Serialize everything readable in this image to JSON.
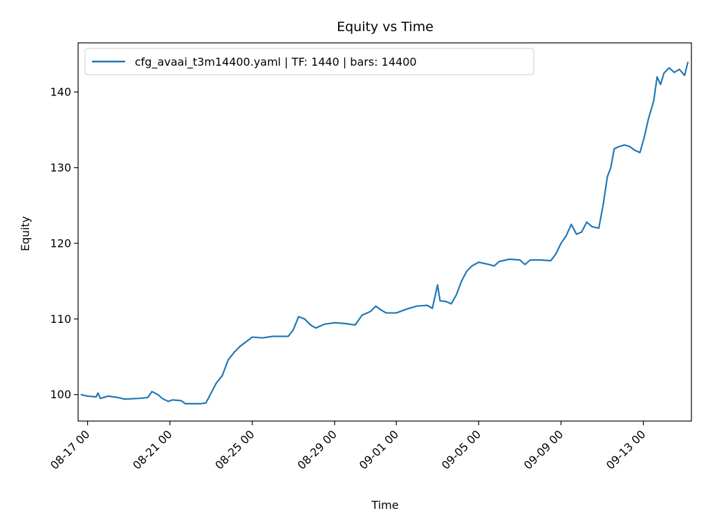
{
  "chart_data": {
    "type": "line",
    "title": "Equity vs Time",
    "xlabel": "Time",
    "ylabel": "Equity",
    "x_tick_labels": [
      "08-17 00",
      "08-21 00",
      "08-25 00",
      "08-29 00",
      "09-01 00",
      "09-05 00",
      "09-09 00",
      "09-13 00"
    ],
    "x_tick_dates": [
      "08-17",
      "08-21",
      "08-25",
      "08-29",
      "09-01",
      "09-05",
      "09-09",
      "09-13"
    ],
    "y_ticks": [
      100,
      110,
      120,
      130,
      140
    ],
    "xlim": [
      "08-16 13:00",
      "09-15 08:00"
    ],
    "ylim": [
      96.5,
      146.5
    ],
    "grid": false,
    "legend_position": "top-left",
    "series": [
      {
        "name": "cfg_avaai_t3m14400.yaml | TF: 1440 | bars: 14400",
        "color": "#1f77b4",
        "points": [
          [
            "08-16 16:00",
            100.0
          ],
          [
            "08-17 00:00",
            99.8
          ],
          [
            "08-17 10:00",
            99.7
          ],
          [
            "08-17 12:00",
            100.2
          ],
          [
            "08-17 15:00",
            99.5
          ],
          [
            "08-18 00:00",
            99.8
          ],
          [
            "08-18 12:00",
            99.6
          ],
          [
            "08-18 19:00",
            99.4
          ],
          [
            "08-19 12:00",
            99.5
          ],
          [
            "08-19 22:00",
            99.6
          ],
          [
            "08-20 03:00",
            100.4
          ],
          [
            "08-20 10:00",
            100.0
          ],
          [
            "08-20 15:00",
            99.5
          ],
          [
            "08-20 22:00",
            99.1
          ],
          [
            "08-21 03:00",
            99.3
          ],
          [
            "08-21 13:00",
            99.2
          ],
          [
            "08-21 18:00",
            98.8
          ],
          [
            "08-22 12:00",
            98.8
          ],
          [
            "08-22 18:00",
            98.9
          ],
          [
            "08-23 00:00",
            100.2
          ],
          [
            "08-23 06:00",
            101.5
          ],
          [
            "08-23 13:00",
            102.5
          ],
          [
            "08-23 20:00",
            104.6
          ],
          [
            "08-24 03:00",
            105.6
          ],
          [
            "08-24 10:00",
            106.4
          ],
          [
            "08-24 17:00",
            107.0
          ],
          [
            "08-25 00:00",
            107.6
          ],
          [
            "08-25 12:00",
            107.5
          ],
          [
            "08-26 00:00",
            107.7
          ],
          [
            "08-26 18:00",
            107.7
          ],
          [
            "08-27 00:00",
            108.6
          ],
          [
            "08-27 06:00",
            110.3
          ],
          [
            "08-27 13:00",
            110.0
          ],
          [
            "08-27 20:00",
            109.2
          ],
          [
            "08-28 02:00",
            108.8
          ],
          [
            "08-28 12:00",
            109.3
          ],
          [
            "08-29 00:00",
            109.5
          ],
          [
            "08-29 12:00",
            109.4
          ],
          [
            "08-30 00:00",
            109.2
          ],
          [
            "08-30 08:00",
            110.5
          ],
          [
            "08-30 18:00",
            111.0
          ],
          [
            "08-31 00:00",
            111.7
          ],
          [
            "08-31 06:00",
            111.2
          ],
          [
            "08-31 12:00",
            110.8
          ],
          [
            "09-01 00:00",
            110.8
          ],
          [
            "09-01 12:00",
            111.3
          ],
          [
            "09-02 00:00",
            111.7
          ],
          [
            "09-02 12:00",
            111.8
          ],
          [
            "09-02 18:00",
            111.4
          ],
          [
            "09-03 00:00",
            114.5
          ],
          [
            "09-03 03:00",
            112.4
          ],
          [
            "09-03 10:00",
            112.3
          ],
          [
            "09-03 16:00",
            112.0
          ],
          [
            "09-03 22:00",
            113.2
          ],
          [
            "09-04 04:00",
            115.0
          ],
          [
            "09-04 10:00",
            116.3
          ],
          [
            "09-04 16:00",
            117.0
          ],
          [
            "09-05 00:00",
            117.5
          ],
          [
            "09-05 12:00",
            117.2
          ],
          [
            "09-05 18:00",
            117.0
          ],
          [
            "09-06 00:00",
            117.6
          ],
          [
            "09-06 12:00",
            117.9
          ],
          [
            "09-07 00:00",
            117.8
          ],
          [
            "09-07 06:00",
            117.2
          ],
          [
            "09-07 12:00",
            117.8
          ],
          [
            "09-08 00:00",
            117.8
          ],
          [
            "09-08 12:00",
            117.7
          ],
          [
            "09-08 18:00",
            118.6
          ],
          [
            "09-09 00:00",
            120.0
          ],
          [
            "09-09 06:00",
            121.0
          ],
          [
            "09-09 12:00",
            122.5
          ],
          [
            "09-09 18:00",
            121.2
          ],
          [
            "09-10 00:00",
            121.5
          ],
          [
            "09-10 06:00",
            122.8
          ],
          [
            "09-10 12:00",
            122.2
          ],
          [
            "09-10 20:00",
            122.0
          ],
          [
            "09-11 01:00",
            125.0
          ],
          [
            "09-11 06:00",
            128.8
          ],
          [
            "09-11 10:00",
            130.0
          ],
          [
            "09-11 14:00",
            132.5
          ],
          [
            "09-11 20:00",
            132.8
          ],
          [
            "09-12 02:00",
            133.0
          ],
          [
            "09-12 08:00",
            132.8
          ],
          [
            "09-12 14:00",
            132.3
          ],
          [
            "09-12 20:00",
            132.0
          ],
          [
            "09-13 01:00",
            134.0
          ],
          [
            "09-13 06:00",
            136.5
          ],
          [
            "09-13 12:00",
            138.8
          ],
          [
            "09-13 16:00",
            142.0
          ],
          [
            "09-13 20:00",
            141.0
          ],
          [
            "09-14 00:00",
            142.5
          ],
          [
            "09-14 06:00",
            143.2
          ],
          [
            "09-14 12:00",
            142.6
          ],
          [
            "09-14 18:00",
            143.0
          ],
          [
            "09-15 00:00",
            142.2
          ],
          [
            "09-15 04:00",
            144.0
          ]
        ]
      }
    ]
  }
}
